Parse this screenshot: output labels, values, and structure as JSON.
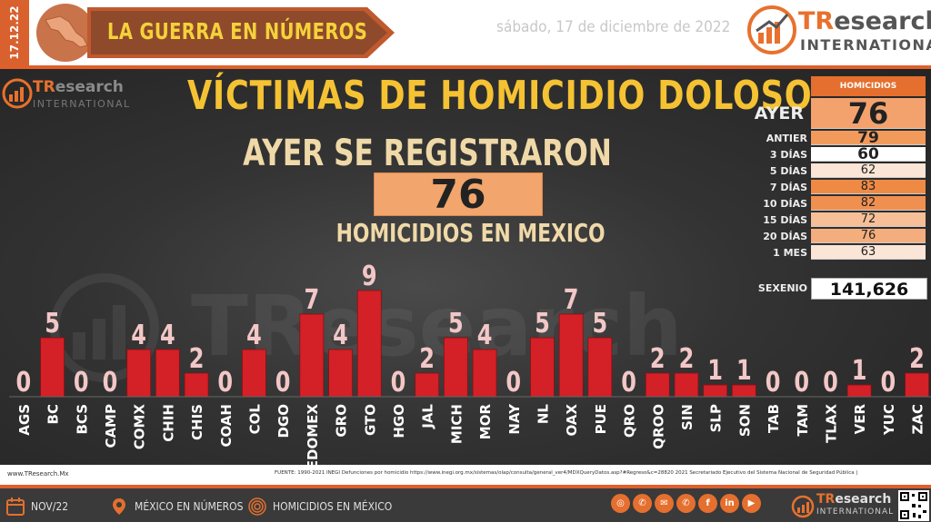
{
  "header": {
    "date_vertical": "17.12.22",
    "banner_title": "LA GUERRA EN NÚMEROS",
    "date": "sábado, 17 de diciembre de 2022",
    "logo_brand_a": "TR",
    "logo_brand_b": "esearch",
    "logo_sub": "INTERNATIONAL"
  },
  "main": {
    "title": "VÍCTIMAS DE HOMICIDIO DOLOSO",
    "subtitle": "AYER SE REGISTRARON",
    "big_value": "76",
    "big_caption": "HOMICIDIOS EN MEXICO",
    "watermark": "TResearch"
  },
  "summary": {
    "header": "HOMICIDIOS",
    "ayer_label": "AYER",
    "ayer_value": "76",
    "rows": [
      {
        "label": "ANTIER",
        "value": "79",
        "color": "#f29a5c"
      },
      {
        "label": "3 DÍAS",
        "value": "60",
        "color": "#ffffff"
      },
      {
        "label": "5 DÍAS",
        "value": "62",
        "color": "#fbe5d6"
      },
      {
        "label": "7 DÍAS",
        "value": "83",
        "color": "#ef8a45"
      },
      {
        "label": "10 DÍAS",
        "value": "82",
        "color": "#f09050"
      },
      {
        "label": "15 DÍAS",
        "value": "72",
        "color": "#f6bf98"
      },
      {
        "label": "20 DÍAS",
        "value": "76",
        "color": "#f4ad7c"
      },
      {
        "label": "1 MES",
        "value": "63",
        "color": "#fbe5d6"
      }
    ],
    "sexenio_label": "SEXENIO",
    "sexenio_value": "141,626"
  },
  "chart_data": {
    "type": "bar",
    "categories": [
      "AGS",
      "BC",
      "BCS",
      "CAMP",
      "COMX",
      "CHIH",
      "CHIS",
      "COAH",
      "COL",
      "DGO",
      "EDOMEX",
      "GRO",
      "GTO",
      "HGO",
      "JAL",
      "MICH",
      "MOR",
      "NAY",
      "NL",
      "OAX",
      "PUE",
      "QRO",
      "QROO",
      "SIN",
      "SLP",
      "SON",
      "TAB",
      "TAM",
      "TLAX",
      "VER",
      "YUC",
      "ZAC"
    ],
    "values": [
      0,
      5,
      0,
      0,
      4,
      4,
      2,
      0,
      4,
      0,
      7,
      4,
      9,
      0,
      2,
      5,
      4,
      0,
      5,
      7,
      5,
      0,
      2,
      2,
      1,
      1,
      0,
      0,
      0,
      1,
      0,
      2
    ],
    "ylim": [
      0,
      9
    ],
    "bar_color": "#d42027",
    "label_color": "#f3c7c7"
  },
  "source": {
    "site": "www.TResearch.Mx",
    "text": "FUENTE: 1990-2021 INEGI Defunciones por homicidio https://www.inegi.org.mx/sistemas/olap/consulta/general_ver4/MDXQueryDatos.asp?#Regreso&c=28820   2021 Secretariado Ejecutivo del Sistema Nacional de Seguridad Pública |"
  },
  "footer": {
    "item1": "NOV/22",
    "item2": "MÉXICO EN NÚMEROS",
    "item3": "HOMICIDIOS EN MÉXICO",
    "social": [
      "www-icon",
      "phone-icon",
      "email-icon",
      "whatsapp-icon",
      "facebook-icon",
      "linkedin-icon",
      "youtube-icon"
    ],
    "logo_brand_a": "TR",
    "logo_brand_b": "esearch",
    "logo_sub": "INTERNATIONAL"
  },
  "colors": {
    "accent": "#e05f2a",
    "title_yellow": "#f5c233",
    "subtitle_cream": "#f0d9a8"
  }
}
